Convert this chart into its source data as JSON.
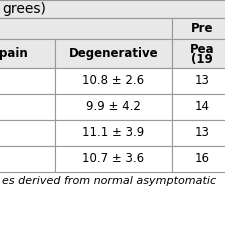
{
  "title": "grees)",
  "col0_header": "pain",
  "col1_header": "Degenerative",
  "col2_header_line1": "Pre",
  "col2_header_line2": "Pea",
  "col2_header_line3": "(19",
  "rows": [
    [
      "",
      "10.8 ± 2.6",
      "13"
    ],
    [
      "",
      "9.9 ± 4.2",
      "14"
    ],
    [
      "",
      "11.1 ± 3.9",
      "13"
    ],
    [
      "",
      "10.7 ± 3.6",
      "16"
    ]
  ],
  "footer": "es derived from normal asymptomatic",
  "bg_header": "#e8e8e8",
  "bg_white": "#ffffff",
  "border_color": "#999999",
  "text_color": "#000000",
  "font_size": 8.5,
  "title_font_size": 10
}
